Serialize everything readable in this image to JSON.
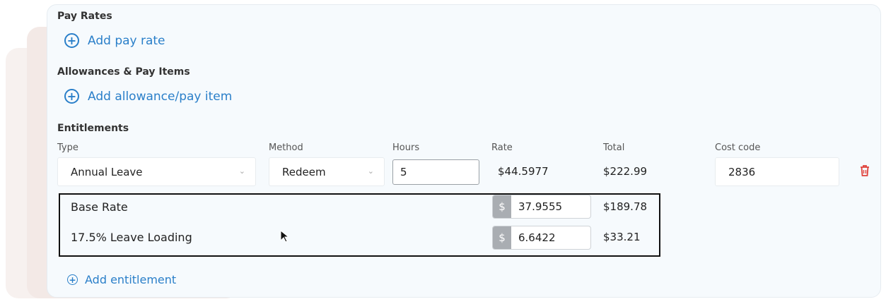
{
  "pay_rates": {
    "heading": "Pay Rates",
    "add_label": "Add pay rate"
  },
  "allowances": {
    "heading": "Allowances & Pay Items",
    "add_label": "Add allowance/pay item"
  },
  "entitlements": {
    "heading": "Entitlements",
    "columns": {
      "type": "Type",
      "method": "Method",
      "hours": "Hours",
      "rate": "Rate",
      "total": "Total",
      "cost_code": "Cost code"
    },
    "row": {
      "type": "Annual Leave",
      "method": "Redeem",
      "hours": "5",
      "rate": "$44.5977",
      "total": "$222.99",
      "cost_code": "2836"
    },
    "breakdown": [
      {
        "label": "Base Rate",
        "currency": "$",
        "rate": "37.9555",
        "total": "$189.78"
      },
      {
        "label": "17.5% Leave Loading",
        "currency": "$",
        "rate": "6.6422",
        "total": "$33.21"
      }
    ],
    "add_label": "Add entitlement"
  },
  "colors": {
    "accent": "#2a7fc9",
    "delete": "#e0413a"
  }
}
